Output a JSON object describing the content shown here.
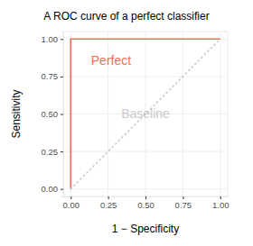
{
  "chart_data": {
    "type": "line",
    "title": "A ROC curve of a perfect classifier",
    "x_label": "1 − Specificity",
    "y_label": "Sensitivity",
    "xlim": [
      -0.05,
      1.05
    ],
    "ylim": [
      -0.05,
      1.05
    ],
    "xticks": [
      {
        "value": 0,
        "label": "0.00"
      },
      {
        "value": 0.25,
        "label": "0.25"
      },
      {
        "value": 0.5,
        "label": "0.50"
      },
      {
        "value": 0.75,
        "label": "0.75"
      },
      {
        "value": 1,
        "label": "1.00"
      }
    ],
    "yticks": [
      {
        "value": 0,
        "label": "0.00"
      },
      {
        "value": 0.25,
        "label": "0.25"
      },
      {
        "value": 0.5,
        "label": "0.50"
      },
      {
        "value": 0.75,
        "label": "0.75"
      },
      {
        "value": 1,
        "label": "1.00"
      }
    ],
    "grid": true,
    "series": [
      {
        "x": [
          0,
          0,
          1
        ],
        "values": [
          0,
          1,
          1
        ],
        "color": "#f46d4f",
        "line_style": "solid"
      },
      {
        "x": [
          0,
          1
        ],
        "values": [
          0,
          1
        ],
        "color": "#cccccc",
        "line_style": "dotted"
      }
    ],
    "annotations": [
      {
        "text": "Perfect",
        "x": 0.27,
        "y": 0.86,
        "color": "#f46d4f"
      },
      {
        "text": "Baseline",
        "x": 0.5,
        "y": 0.5,
        "color": "#c8c8c8"
      }
    ]
  }
}
